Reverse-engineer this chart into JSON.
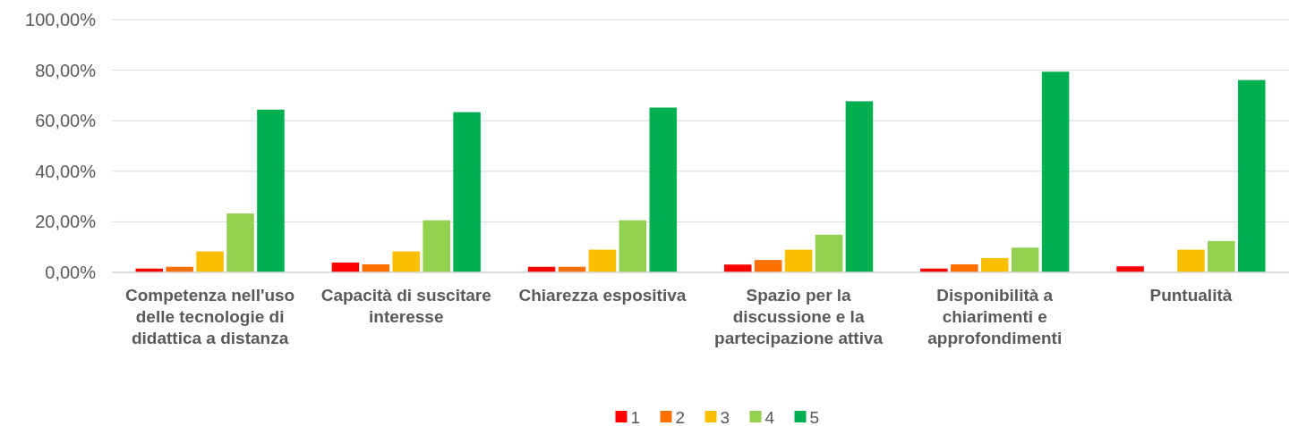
{
  "chart_data": {
    "type": "bar",
    "categories": [
      "Competenza nell'uso delle tecnologie di didattica a distanza",
      "Capacità di suscitare interesse",
      "Chiarezza espositiva",
      "Spazio per la discussione e la partecipazione attiva",
      "Disponibilità a chiarimenti e approfondimenti",
      "Puntualità"
    ],
    "series": [
      {
        "name": "1",
        "color": "#ff0000",
        "values": [
          1.5,
          3.9,
          2.2,
          3.1,
          1.5,
          2.4
        ]
      },
      {
        "name": "2",
        "color": "#ff7000",
        "values": [
          2.2,
          3.2,
          2.2,
          4.9,
          3.2,
          0
        ]
      },
      {
        "name": "3",
        "color": "#fbbf00",
        "values": [
          8.3,
          8.3,
          9.0,
          9.0,
          5.7,
          9.0
        ]
      },
      {
        "name": "4",
        "color": "#92d050",
        "values": [
          23.3,
          20.6,
          20.6,
          14.9,
          9.8,
          12.4
        ]
      },
      {
        "name": "5",
        "color": "#00b050",
        "values": [
          64.4,
          63.4,
          65.2,
          67.7,
          79.4,
          76.1
        ]
      }
    ],
    "ylim": [
      0,
      100
    ],
    "yticks": [
      {
        "value": 0,
        "label": "0,00%"
      },
      {
        "value": 20,
        "label": "20,00%"
      },
      {
        "value": 40,
        "label": "40,00%"
      },
      {
        "value": 60,
        "label": "60,00%"
      },
      {
        "value": 80,
        "label": "80,00%"
      },
      {
        "value": 100,
        "label": "100,00%"
      }
    ],
    "grid": "y",
    "legend": "bottom"
  }
}
